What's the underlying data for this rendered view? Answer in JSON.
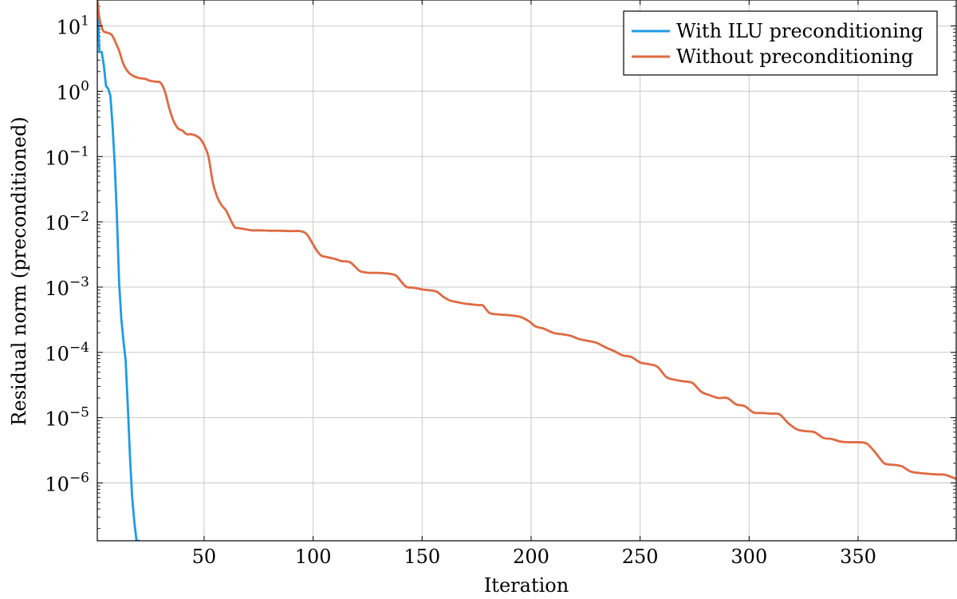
{
  "chart_data": {
    "type": "line",
    "title": "",
    "xlabel": "Iteration",
    "ylabel": "Residual norm (preconditioned)",
    "xlim": [
      1,
      395
    ],
    "ylim": [
      1.3e-07,
      25
    ],
    "yscale": "log",
    "grid": true,
    "legend_position": "top-right",
    "xticks": [
      50,
      100,
      150,
      200,
      250,
      300,
      350
    ],
    "xtick_labels": [
      "50",
      "100",
      "150",
      "200",
      "250",
      "300",
      "350"
    ],
    "yticks": [
      {
        "value": 10,
        "mantissa": "10",
        "exp": "1"
      },
      {
        "value": 1,
        "mantissa": "10",
        "exp": "0"
      },
      {
        "value": 0.1,
        "mantissa": "10",
        "exp": "−1"
      },
      {
        "value": 0.01,
        "mantissa": "10",
        "exp": "−2"
      },
      {
        "value": 0.001,
        "mantissa": "10",
        "exp": "−3"
      },
      {
        "value": 0.0001,
        "mantissa": "10",
        "exp": "−4"
      },
      {
        "value": 1e-05,
        "mantissa": "10",
        "exp": "−5"
      },
      {
        "value": 1e-06,
        "mantissa": "10",
        "exp": "−6"
      }
    ],
    "series": [
      {
        "name": "With ILU preconditioning",
        "color": "#1f9ae5",
        "x": [
          1,
          2,
          3,
          4,
          5,
          6,
          7,
          8,
          9,
          10,
          11,
          12,
          13,
          14,
          15,
          16,
          17,
          18,
          19,
          20
        ],
        "y": [
          25,
          4,
          4,
          2.5,
          1.2,
          1.1,
          0.85,
          0.3,
          0.075,
          0.012,
          0.0012,
          0.00033,
          0.00015,
          7.5e-05,
          1.5e-05,
          2.5e-06,
          6e-07,
          2.5e-07,
          1.3e-07,
          1.3e-07
        ]
      },
      {
        "name": "Without preconditioning",
        "color": "#df6a42",
        "x": [
          1,
          2,
          3,
          4,
          5,
          6,
          7,
          8,
          9,
          10,
          11,
          13,
          15,
          17,
          20,
          23,
          25,
          28,
          30,
          32,
          34,
          36,
          38,
          40,
          42,
          44,
          46,
          48,
          50,
          52,
          54,
          56,
          58,
          60,
          62,
          64,
          66,
          70,
          72,
          76,
          80,
          85,
          90,
          94,
          97,
          100,
          102,
          104,
          106,
          110,
          113,
          117,
          121,
          123,
          126,
          130,
          135,
          138,
          141,
          143,
          146,
          150,
          155,
          157,
          160,
          163,
          167,
          171,
          176,
          178,
          181,
          186,
          190,
          195,
          199,
          202,
          206,
          210,
          214,
          218,
          222,
          226,
          230,
          234,
          238,
          242,
          246,
          250,
          254,
          258,
          262,
          266,
          270,
          274,
          278,
          282,
          286,
          290,
          294,
          298,
          302,
          306,
          310,
          314,
          318,
          322,
          326,
          330,
          334,
          338,
          342,
          346,
          350,
          354,
          358,
          362,
          366,
          370,
          374,
          378,
          382,
          386,
          390,
          395
        ],
        "y": [
          25,
          13,
          9.5,
          8.2,
          8.0,
          7.8,
          7.6,
          7.0,
          6.0,
          5.0,
          4.2,
          2.6,
          2.0,
          1.75,
          1.6,
          1.55,
          1.45,
          1.4,
          1.35,
          1.0,
          0.55,
          0.35,
          0.27,
          0.25,
          0.22,
          0.22,
          0.21,
          0.19,
          0.15,
          0.1,
          0.04,
          0.024,
          0.018,
          0.015,
          0.011,
          0.0083,
          0.008,
          0.0076,
          0.0074,
          0.0074,
          0.0073,
          0.0073,
          0.0072,
          0.0072,
          0.0065,
          0.0045,
          0.0035,
          0.003,
          0.0029,
          0.0027,
          0.0025,
          0.0024,
          0.0018,
          0.0017,
          0.00165,
          0.00165,
          0.0016,
          0.0015,
          0.00115,
          0.001,
          0.00098,
          0.00092,
          0.00088,
          0.00084,
          0.0007,
          0.00062,
          0.00058,
          0.00055,
          0.00053,
          0.00052,
          0.0004,
          0.00038,
          0.00037,
          0.00035,
          0.0003,
          0.00025,
          0.00023,
          0.0002,
          0.00019,
          0.00018,
          0.00016,
          0.00015,
          0.00014,
          0.00012,
          0.000105,
          9e-05,
          8.5e-05,
          7e-05,
          6.6e-05,
          6e-05,
          4.2e-05,
          3.8e-05,
          3.6e-05,
          3.4e-05,
          2.5e-05,
          2.2e-05,
          2e-05,
          2e-05,
          1.6e-05,
          1.5e-05,
          1.2e-05,
          1.18e-05,
          1.15e-05,
          1.12e-05,
          8.2e-06,
          6.6e-06,
          6.2e-06,
          6e-06,
          4.9e-06,
          4.7e-06,
          4.3e-06,
          4.2e-06,
          4.2e-06,
          4e-06,
          2.9e-06,
          2e-06,
          1.9e-06,
          1.8e-06,
          1.5e-06,
          1.42e-06,
          1.38e-06,
          1.35e-06,
          1.33e-06,
          1.15e-06
        ]
      }
    ]
  }
}
